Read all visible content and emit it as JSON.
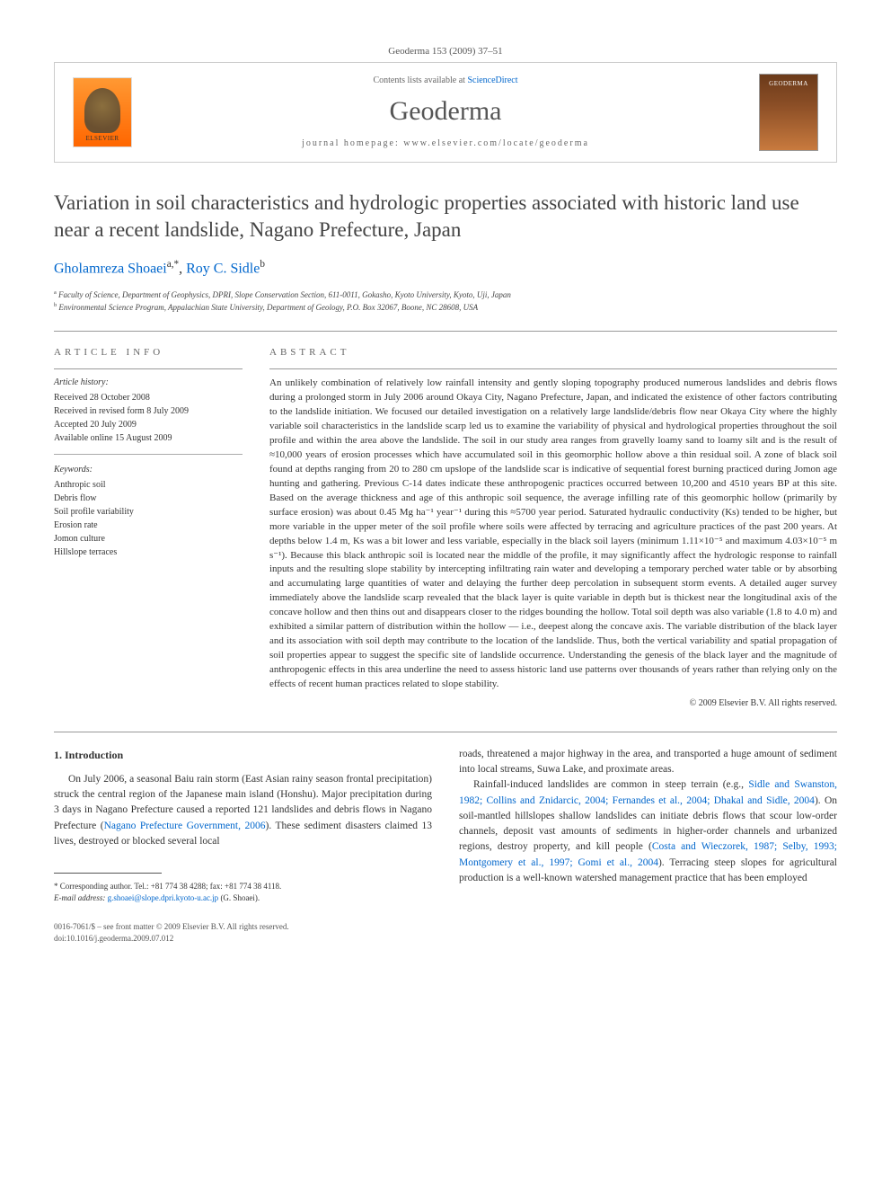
{
  "journal_citation": "Geoderma 153 (2009) 37–51",
  "header": {
    "contents_prefix": "Contents lists available at ",
    "contents_link": "ScienceDirect",
    "journal_name": "Geoderma",
    "homepage_prefix": "journal homepage: ",
    "homepage_url": "www.elsevier.com/locate/geoderma",
    "elsevier_label": "ELSEVIER",
    "cover_label": "GEODERMA"
  },
  "title": "Variation in soil characteristics and hydrologic properties associated with historic land use near a recent landslide, Nagano Prefecture, Japan",
  "authors": {
    "a1_name": "Gholamreza Shoaei",
    "a1_marks": "a,*",
    "a2_name": "Roy C. Sidle",
    "a2_marks": "b"
  },
  "affiliations": {
    "a": "Faculty of Science, Department of Geophysics, DPRI, Slope Conservation Section, 611-0011, Gokasho, Kyoto University, Kyoto, Uji, Japan",
    "b": "Environmental Science Program, Appalachian State University, Department of Geology, P.O. Box 32067, Boone, NC 28608, USA"
  },
  "info": {
    "heading": "ARTICLE INFO",
    "history_label": "Article history:",
    "received": "Received 28 October 2008",
    "revised": "Received in revised form 8 July 2009",
    "accepted": "Accepted 20 July 2009",
    "online": "Available online 15 August 2009",
    "keywords_label": "Keywords:",
    "kw1": "Anthropic soil",
    "kw2": "Debris flow",
    "kw3": "Soil profile variability",
    "kw4": "Erosion rate",
    "kw5": "Jomon culture",
    "kw6": "Hillslope terraces"
  },
  "abstract": {
    "heading": "ABSTRACT",
    "body": "An unlikely combination of relatively low rainfall intensity and gently sloping topography produced numerous landslides and debris flows during a prolonged storm in July 2006 around Okaya City, Nagano Prefecture, Japan, and indicated the existence of other factors contributing to the landslide initiation. We focused our detailed investigation on a relatively large landslide/debris flow near Okaya City where the highly variable soil characteristics in the landslide scarp led us to examine the variability of physical and hydrological properties throughout the soil profile and within the area above the landslide. The soil in our study area ranges from gravelly loamy sand to loamy silt and is the result of ≈10,000 years of erosion processes which have accumulated soil in this geomorphic hollow above a thin residual soil. A zone of black soil found at depths ranging from 20 to 280 cm upslope of the landslide scar is indicative of sequential forest burning practiced during Jomon age hunting and gathering. Previous C-14 dates indicate these anthropogenic practices occurred between 10,200 and 4510 years BP at this site. Based on the average thickness and age of this anthropic soil sequence, the average infilling rate of this geomorphic hollow (primarily by surface erosion) was about 0.45 Mg ha⁻¹ year⁻¹ during this ≈5700 year period. Saturated hydraulic conductivity (Ks) tended to be higher, but more variable in the upper meter of the soil profile where soils were affected by terracing and agriculture practices of the past 200 years. At depths below 1.4 m, Ks was a bit lower and less variable, especially in the black soil layers (minimum 1.11×10⁻⁵ and maximum 4.03×10⁻⁵ m s⁻¹). Because this black anthropic soil is located near the middle of the profile, it may significantly affect the hydrologic response to rainfall inputs and the resulting slope stability by intercepting infiltrating rain water and developing a temporary perched water table or by absorbing and accumulating large quantities of water and delaying the further deep percolation in subsequent storm events. A detailed auger survey immediately above the landslide scarp revealed that the black layer is quite variable in depth but is thickest near the longitudinal axis of the concave hollow and then thins out and disappears closer to the ridges bounding the hollow. Total soil depth was also variable (1.8 to 4.0 m) and exhibited a similar pattern of distribution within the hollow — i.e., deepest along the concave axis. The variable distribution of the black layer and its association with soil depth may contribute to the location of the landslide. Thus, both the vertical variability and spatial propagation of soil properties appear to suggest the specific site of landslide occurrence. Understanding the genesis of the black layer and the magnitude of anthropogenic effects in this area underline the need to assess historic land use patterns over thousands of years rather than relying only on the effects of recent human practices related to slope stability.",
    "copyright": "© 2009 Elsevier B.V. All rights reserved."
  },
  "body": {
    "section_number": "1.",
    "section_title": "Introduction",
    "col1_p1_a": "On July 2006, a seasonal Baiu rain storm (East Asian rainy season frontal precipitation) struck the central region of the Japanese main island (Honshu). Major precipitation during 3 days in Nagano Prefecture caused a reported 121 landslides and debris flows in Nagano Prefecture (",
    "col1_p1_ref": "Nagano Prefecture Government, 2006",
    "col1_p1_b": "). These sediment disasters claimed 13 lives, destroyed or blocked several local",
    "col2_p1": "roads, threatened a major highway in the area, and transported a huge amount of sediment into local streams, Suwa Lake, and proximate areas.",
    "col2_p2_a": "Rainfall-induced landslides are common in steep terrain (e.g., ",
    "col2_p2_ref1": "Sidle and Swanston, 1982; Collins and Znidarcic, 2004; Fernandes et al., 2004; Dhakal and Sidle, 2004",
    "col2_p2_b": "). On soil-mantled hillslopes shallow landslides can initiate debris flows that scour low-order channels, deposit vast amounts of sediments in higher-order channels and urbanized regions, destroy property, and kill people (",
    "col2_p2_ref2": "Costa and Wieczorek, 1987; Selby, 1993; Montgomery et al., 1997; Gomi et al., 2004",
    "col2_p2_c": "). Terracing steep slopes for agricultural production is a well-known watershed management practice that has been employed"
  },
  "corresponding": {
    "line1": "* Corresponding author. Tel.: +81 774 38 4288; fax: +81 774 38 4118.",
    "line2_a": "E-mail address: ",
    "email": "g.shoaei@slope.dpri.kyoto-u.ac.jp",
    "line2_b": " (G. Shoaei)."
  },
  "footer": {
    "left_line1": "0016-7061/$ – see front matter © 2009 Elsevier B.V. All rights reserved.",
    "left_line2": "doi:10.1016/j.geoderma.2009.07.012"
  }
}
